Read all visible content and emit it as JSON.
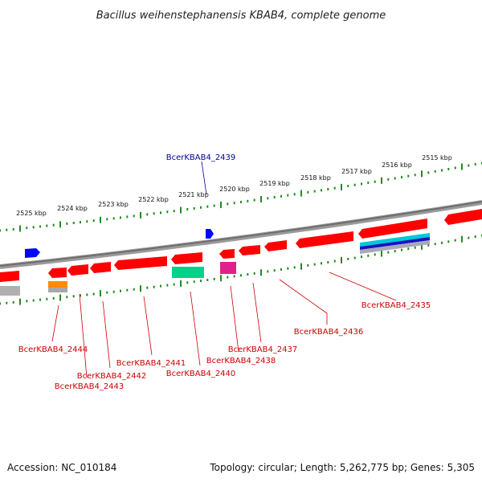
{
  "title": "Bacillus weihenstephanensis KBAB4, complete genome",
  "footer": {
    "accession": "Accession: NC_010184",
    "summary": "Topology: circular; Length: 5,262,775 bp; Genes: 5,305"
  },
  "colors": {
    "backbone": "#7a7a7a",
    "tick": "#228b22",
    "gene_red": "#ff0000",
    "gene_blue": "#0000ff",
    "gene_teal": "#00c98a",
    "gene_pink": "#e0218a",
    "gene_orange": "#ff8c00",
    "gene_gray": "#a8a8a8",
    "label_red": "#cc0000",
    "label_blue": "#000099"
  },
  "scale_ticks": [
    "2525 kbp",
    "2524 kbp",
    "2523 kbp",
    "2522 kbp",
    "2521 kbp",
    "2520 kbp",
    "2519 kbp",
    "2518 kbp",
    "2517 kbp",
    "2516 kbp",
    "2515 kbp"
  ],
  "gene_labels": {
    "g2435": "BcerKBAB4_2435",
    "g2436": "BcerKBAB4_2436",
    "g2437": "BcerKBAB4_2437",
    "g2438": "BcerKBAB4_2438",
    "g2439": "BcerKBAB4_2439",
    "g2440": "BcerKBAB4_2440",
    "g2441": "BcerKBAB4_2441",
    "g2442": "BcerKBAB4_2442",
    "g2443": "BcerKBAB4_2443",
    "g2444": "BcerKBAB4_2444"
  }
}
